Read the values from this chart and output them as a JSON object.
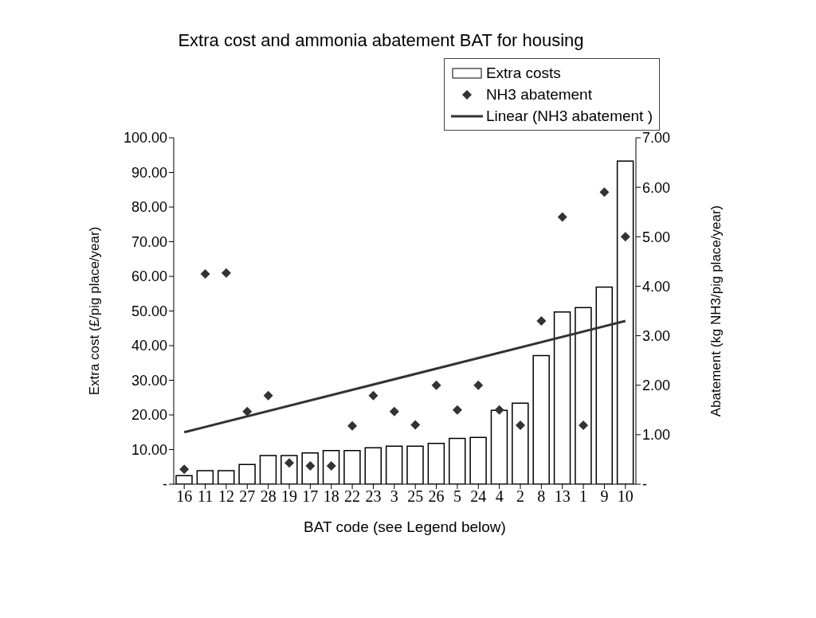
{
  "chart_data": {
    "type": "bar",
    "title": "Extra cost and ammonia abatement BAT for housing",
    "xlabel": "BAT code (see Legend below)",
    "ylabel": "Extra cost (£/pig place/year)",
    "y2label": "Abatement (kg NH3/pig place/year)",
    "categories": [
      "16",
      "11",
      "12",
      "27",
      "28",
      "19",
      "17",
      "18",
      "22",
      "23",
      "3",
      "25",
      "26",
      "5",
      "24",
      "4",
      "2",
      "8",
      "13",
      "1",
      "9",
      "10"
    ],
    "series": [
      {
        "name": "Extra costs",
        "color": "#ffffff",
        "values": [
          2.5,
          3.9,
          3.9,
          5.7,
          8.3,
          8.3,
          9.0,
          9.7,
          9.7,
          10.5,
          11.0,
          11.0,
          11.8,
          13.2,
          13.5,
          21.3,
          23.4,
          37.1,
          49.7,
          51.0,
          56.9,
          93.3
        ]
      },
      {
        "name": "NH3 abatement",
        "type": "scatter",
        "axis": "y2",
        "marker": "diamond",
        "color": "#333333",
        "values": [
          0.3,
          4.25,
          4.27,
          1.47,
          1.79,
          0.43,
          0.37,
          0.37,
          1.18,
          1.79,
          1.47,
          1.2,
          2.0,
          1.5,
          2.0,
          1.5,
          1.19,
          3.3,
          5.4,
          1.19,
          5.9,
          5.0
        ]
      },
      {
        "name": "Linear (NH3 abatement )",
        "type": "line",
        "axis": "y2",
        "color": "#333333",
        "x": [
          "16",
          "10"
        ],
        "values": [
          1.05,
          3.3
        ]
      }
    ],
    "ylim": [
      0,
      100
    ],
    "yticks": [
      {
        "value": 0,
        "label": "-"
      },
      {
        "value": 10,
        "label": "10.00"
      },
      {
        "value": 20,
        "label": "20.00"
      },
      {
        "value": 30,
        "label": "30.00"
      },
      {
        "value": 40,
        "label": "40.00"
      },
      {
        "value": 50,
        "label": "50.00"
      },
      {
        "value": 60,
        "label": "60.00"
      },
      {
        "value": 70,
        "label": "70.00"
      },
      {
        "value": 80,
        "label": "80.00"
      },
      {
        "value": 90,
        "label": "90.00"
      },
      {
        "value": 100,
        "label": "100.00"
      }
    ],
    "y2lim": [
      0,
      7
    ],
    "y2ticks": [
      {
        "value": 0,
        "label": "-"
      },
      {
        "value": 1,
        "label": "1.00"
      },
      {
        "value": 2,
        "label": "2.00"
      },
      {
        "value": 3,
        "label": "3.00"
      },
      {
        "value": 4,
        "label": "4.00"
      },
      {
        "value": 5,
        "label": "5.00"
      },
      {
        "value": 6,
        "label": "6.00"
      },
      {
        "value": 7,
        "label": "7.00"
      }
    ],
    "grid": false,
    "legend": "top right"
  }
}
